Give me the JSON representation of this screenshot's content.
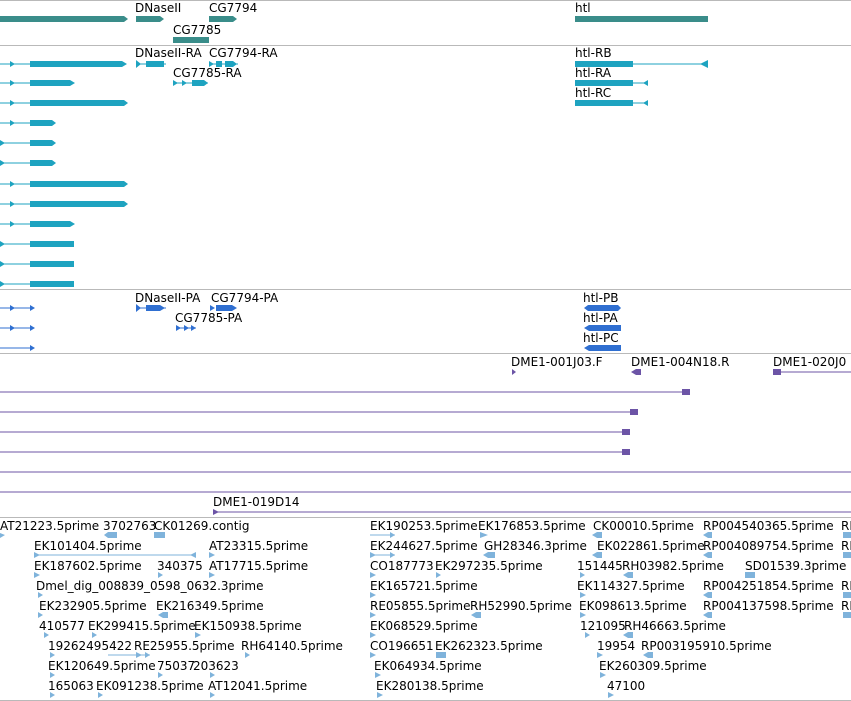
{
  "colors": {
    "gene": "#3a8d8a",
    "transcript": "#1ea3c0",
    "protein": "#2f6fd1",
    "clone": "#6c54a6",
    "est": "#7fb3db",
    "divider": "#b9b9b9"
  },
  "tracks": {
    "genes": {
      "labels": [
        "DNaseII",
        "CG7794",
        "CG7785",
        "htl"
      ]
    },
    "transcripts": {
      "labels": [
        "DNaseII-RA",
        "CG7794-RA",
        "CG7785-RA",
        "htl-RB",
        "htl-RA",
        "htl-RC"
      ]
    },
    "proteins": {
      "labels": [
        "DNaseII-PA",
        "CG7794-PA",
        "CG7785-PA",
        "htl-PB",
        "htl-PA",
        "htl-PC"
      ]
    },
    "clones": {
      "labels": [
        "DME1-001J03.F",
        "DME1-004N18.R",
        "DME1-020J0",
        "DME1-019D14"
      ]
    },
    "ests": {
      "labels": [
        "AT21223.5prime",
        "3702763",
        "CK01269.contig",
        "EK190253.5prime",
        "EK176853.5prime",
        "CK00010.5prime",
        "RP004540365.5prime",
        "RI",
        "EK101404.5prime",
        "AT23315.5prime",
        "EK244627.5prime",
        "GH28346.3prime",
        "EK022861.5prime",
        "RP004089754.5prime",
        "RI",
        "EK187602.5prime",
        "340375",
        "AT17715.5prime",
        "CO187773",
        "EK297235.5prime",
        "151445",
        "RH03982.5prime",
        "SD01539.3prime",
        "Dmel_dig_008839_0598_0632.3prime",
        "EK165721.5prime",
        "EK114327.5prime",
        "RP004251854.5prime",
        "RI",
        "EK232905.5prime",
        "EK216349.5prime",
        "RE05855.5prime",
        "RH52990.5prime",
        "EK098613.5prime",
        "RP004137598.5prime",
        "RI",
        "410577",
        "EK299415.5prime",
        "EK150938.5prime",
        "EK068529.5prime",
        "121095",
        "RH46663.5prime",
        "19262495422",
        "RE25955.5prime",
        "RH64140.5prime",
        "CO196651",
        "EK262323.5prime",
        "19954",
        "RP003195910.5prime",
        "EK120649.5prime",
        "75037",
        "203623",
        "EK064934.5prime",
        "EK260309.5prime",
        "165063",
        "EK091238.5prime",
        "AT12041.5prime",
        "EK280138.5prime",
        "47100"
      ]
    }
  }
}
